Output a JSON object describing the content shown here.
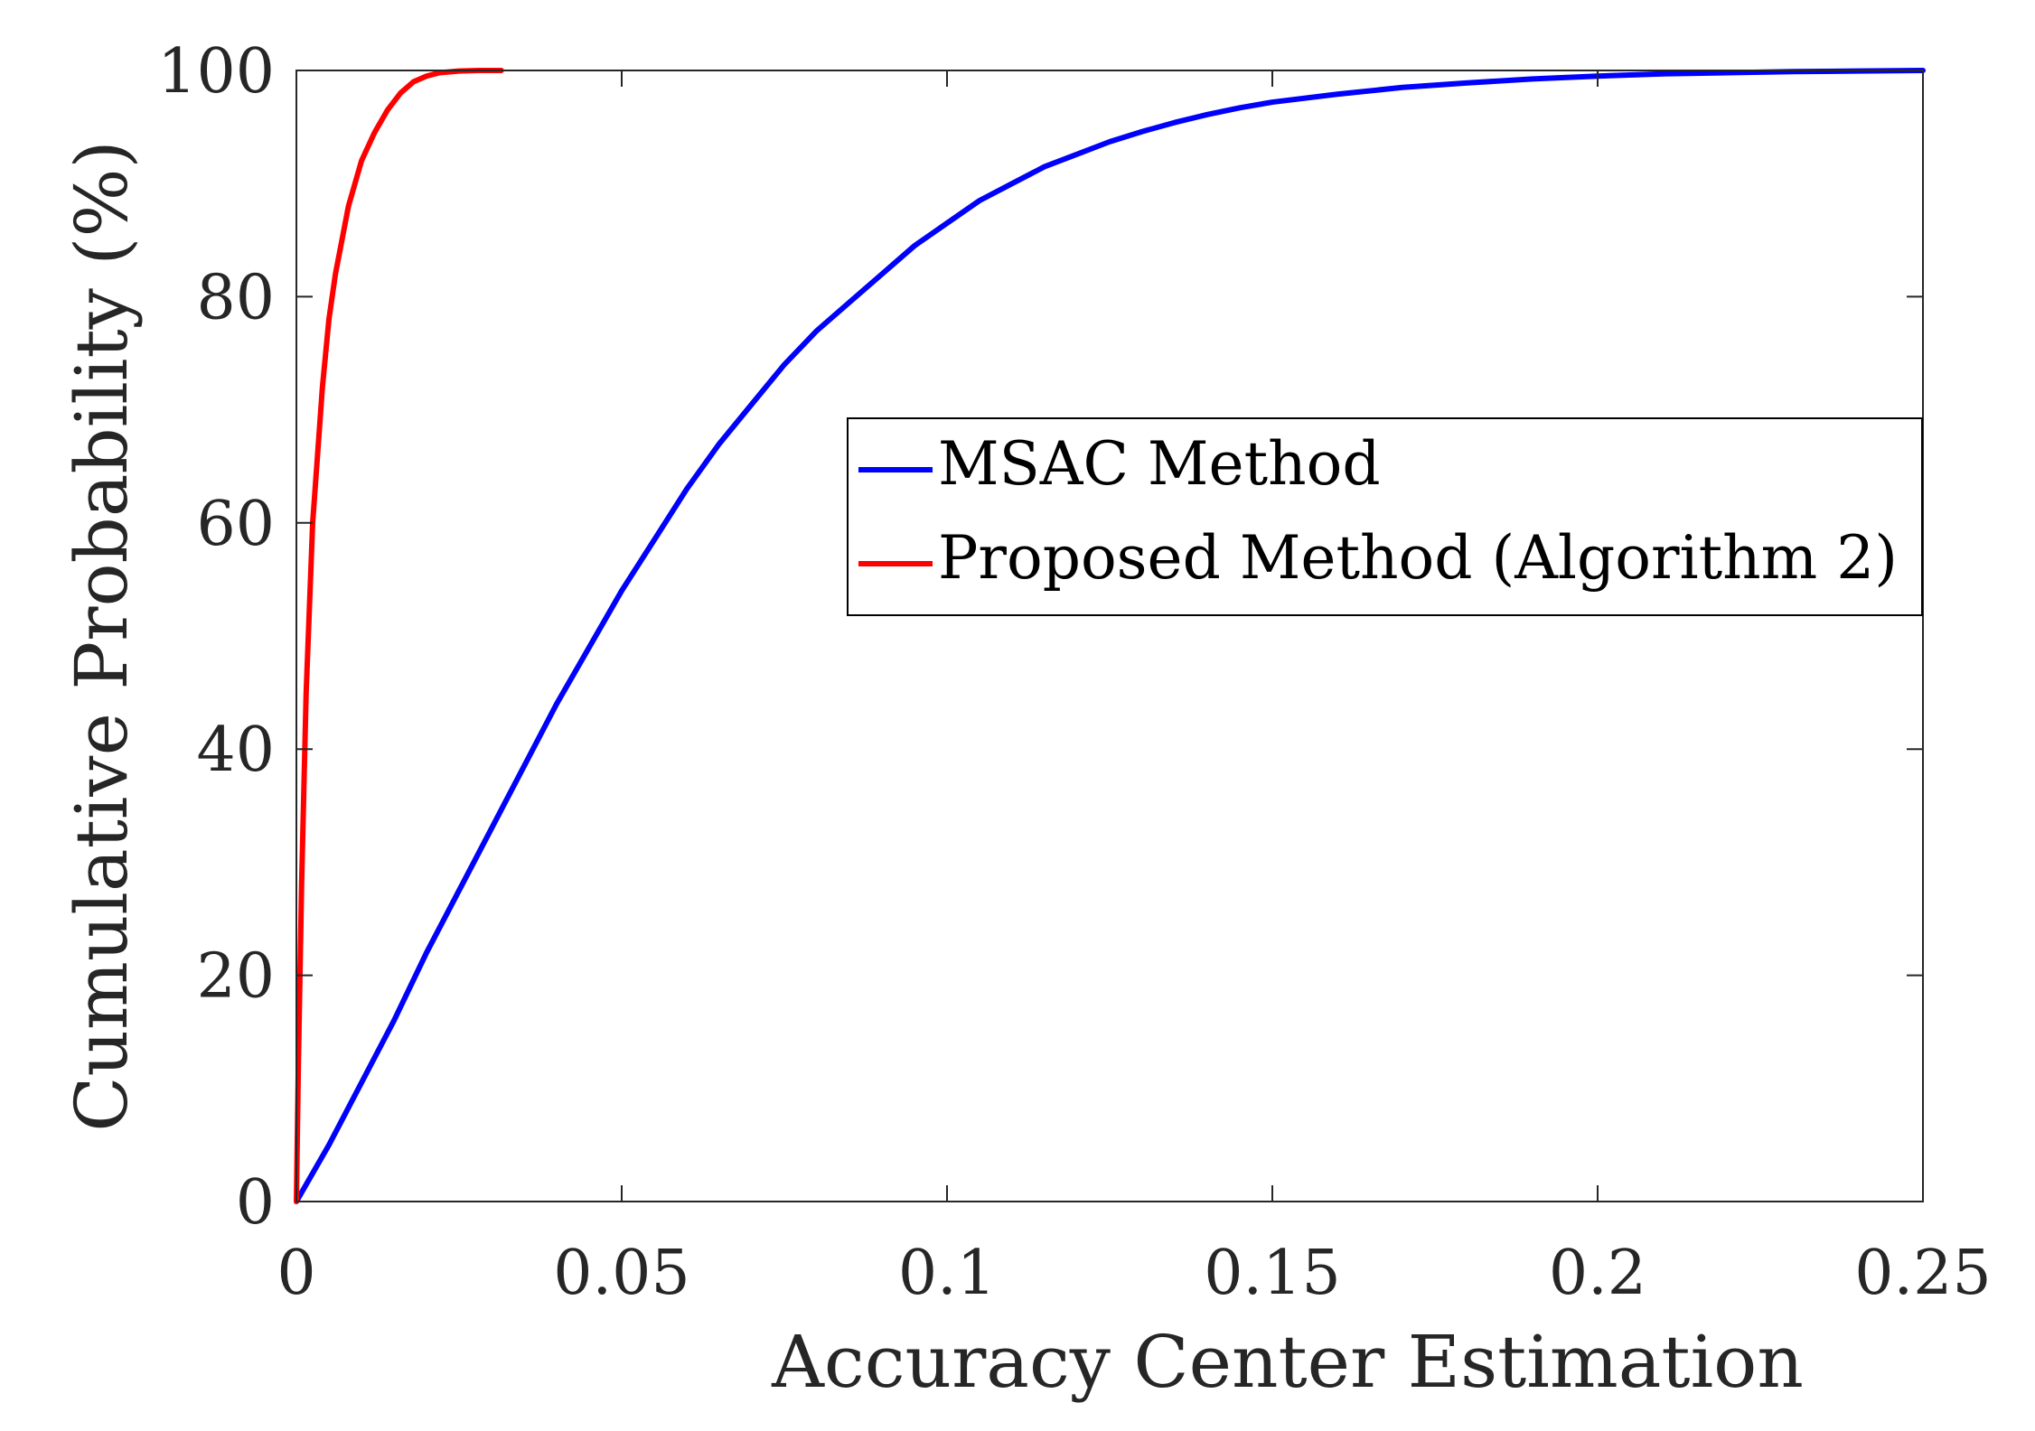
{
  "chart_data": {
    "type": "line",
    "title": "",
    "xlabel": "Accuracy Center Estimation",
    "ylabel": "Cumulative Probability (%)",
    "xlim": [
      0,
      0.25
    ],
    "ylim": [
      0,
      100
    ],
    "xticks": [
      0,
      0.05,
      0.1,
      0.15,
      0.2,
      0.25
    ],
    "xtick_labels": [
      "0",
      "0.05",
      "0.1",
      "0.15",
      "0.2",
      "0.25"
    ],
    "yticks": [
      0,
      20,
      40,
      60,
      80,
      100
    ],
    "ytick_labels": [
      "0",
      "20",
      "40",
      "60",
      "80",
      "100"
    ],
    "grid": false,
    "legend_position": "upper-right",
    "series": [
      {
        "name": "MSAC Method",
        "color": "#0000ff",
        "x": [
          0,
          0.005,
          0.01,
          0.015,
          0.02,
          0.025,
          0.03,
          0.035,
          0.04,
          0.045,
          0.05,
          0.055,
          0.06,
          0.065,
          0.07,
          0.075,
          0.08,
          0.085,
          0.09,
          0.095,
          0.1,
          0.105,
          0.11,
          0.115,
          0.12,
          0.125,
          0.13,
          0.135,
          0.14,
          0.145,
          0.15,
          0.16,
          0.17,
          0.18,
          0.19,
          0.2,
          0.21,
          0.22,
          0.23,
          0.24,
          0.25
        ],
        "y": [
          0,
          5,
          10.5,
          16,
          22,
          27.5,
          33,
          38.5,
          44,
          49,
          54,
          58.5,
          63,
          67,
          70.5,
          74,
          77,
          79.5,
          82,
          84.5,
          86.5,
          88.5,
          90,
          91.5,
          92.6,
          93.7,
          94.6,
          95.4,
          96.1,
          96.7,
          97.2,
          97.9,
          98.5,
          98.9,
          99.25,
          99.5,
          99.7,
          99.8,
          99.9,
          99.95,
          100
        ]
      },
      {
        "name": "Proposed Method (Algorithm 2)",
        "color": "#ff0000",
        "x": [
          0,
          0.0003,
          0.0008,
          0.0015,
          0.0025,
          0.004,
          0.005,
          0.006,
          0.008,
          0.01,
          0.012,
          0.014,
          0.016,
          0.018,
          0.02,
          0.022,
          0.025,
          0.028,
          0.0315
        ],
        "y": [
          0,
          12,
          28,
          45,
          60,
          72,
          78,
          82,
          88,
          92,
          94.5,
          96.5,
          98,
          99,
          99.5,
          99.8,
          99.95,
          100,
          100
        ]
      }
    ]
  }
}
